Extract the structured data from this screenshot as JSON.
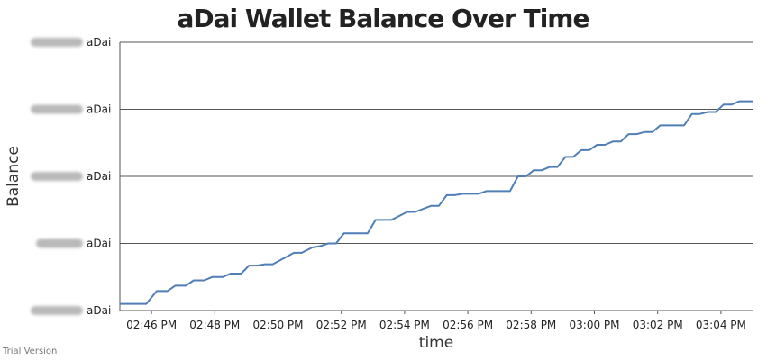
{
  "chart_data": {
    "type": "line",
    "title": "aDai Wallet Balance Over Time",
    "xlabel": "time",
    "ylabel": "Balance",
    "x_ticks": [
      "02:46 PM",
      "02:48 PM",
      "02:50 PM",
      "02:52 PM",
      "02:54 PM",
      "02:56 PM",
      "02:58 PM",
      "03:00 PM",
      "03:02 PM",
      "03:04 PM"
    ],
    "y_tick_unit": "aDai",
    "y_tick_values_obscured": true,
    "x_range": [
      "02:45 PM",
      "03:05 PM"
    ],
    "y_range_relative": [
      0,
      4
    ],
    "grid": "horizontal",
    "series": [
      {
        "color": "#4f7fb6",
        "points": [
          [
            "02:45 PM",
            0.1
          ],
          [
            "02:45:50 PM",
            0.1
          ],
          [
            "02:46:10 PM",
            0.29
          ],
          [
            "02:46:30 PM",
            0.29
          ],
          [
            "02:46:45 PM",
            0.37
          ],
          [
            "02:47:05 PM",
            0.37
          ],
          [
            "02:47:20 PM",
            0.45
          ],
          [
            "02:47:40 PM",
            0.45
          ],
          [
            "02:47:55 PM",
            0.5
          ],
          [
            "02:48:15 PM",
            0.5
          ],
          [
            "02:48:30 PM",
            0.55
          ],
          [
            "02:48:50 PM",
            0.55
          ],
          [
            "02:49:05 PM",
            0.67
          ],
          [
            "02:49:20 PM",
            0.67
          ],
          [
            "02:49:35 PM",
            0.69
          ],
          [
            "02:49:50 PM",
            0.69
          ],
          [
            "02:50:30 PM",
            0.86
          ],
          [
            "02:50:45 PM",
            0.86
          ],
          [
            "02:51:05 PM",
            0.94
          ],
          [
            "02:51:20 PM",
            0.96
          ],
          [
            "02:51:35 PM",
            1.0
          ],
          [
            "02:51:50 PM",
            1.0
          ],
          [
            "02:52:05 PM",
            1.15
          ],
          [
            "02:52:50 PM",
            1.15
          ],
          [
            "02:53:05 PM",
            1.35
          ],
          [
            "02:53:35 PM",
            1.35
          ],
          [
            "02:54:05 PM",
            1.47
          ],
          [
            "02:54:20 PM",
            1.47
          ],
          [
            "02:54:50 PM",
            1.56
          ],
          [
            "02:55:05 PM",
            1.56
          ],
          [
            "02:55:20 PM",
            1.72
          ],
          [
            "02:55:35 PM",
            1.72
          ],
          [
            "02:55:50 PM",
            1.74
          ],
          [
            "02:56:20 PM",
            1.74
          ],
          [
            "02:56:35 PM",
            1.78
          ],
          [
            "02:57:20 PM",
            1.78
          ],
          [
            "02:57:35 PM",
            2.0
          ],
          [
            "02:57:50 PM",
            2.0
          ],
          [
            "02:58:05 PM",
            2.09
          ],
          [
            "02:58:20 PM",
            2.09
          ],
          [
            "02:58:35 PM",
            2.14
          ],
          [
            "02:58:50 PM",
            2.14
          ],
          [
            "02:59:05 PM",
            2.29
          ],
          [
            "02:59:20 PM",
            2.29
          ],
          [
            "02:59:35 PM",
            2.39
          ],
          [
            "02:59:50 PM",
            2.39
          ],
          [
            "03:00:05 PM",
            2.47
          ],
          [
            "03:00:20 PM",
            2.47
          ],
          [
            "03:00:35 PM",
            2.52
          ],
          [
            "03:00:50 PM",
            2.52
          ],
          [
            "03:01:05 PM",
            2.63
          ],
          [
            "03:01:20 PM",
            2.63
          ],
          [
            "03:01:35 PM",
            2.66
          ],
          [
            "03:01:50 PM",
            2.66
          ],
          [
            "03:02:05 PM",
            2.76
          ],
          [
            "03:02:50 PM",
            2.76
          ],
          [
            "03:03:05 PM",
            2.93
          ],
          [
            "03:03:20 PM",
            2.93
          ],
          [
            "03:03:35 PM",
            2.96
          ],
          [
            "03:03:50 PM",
            2.96
          ],
          [
            "03:04:05 PM",
            3.07
          ],
          [
            "03:04:20 PM",
            3.07
          ],
          [
            "03:04:35 PM",
            3.12
          ],
          [
            "03:05 PM",
            3.12
          ]
        ]
      }
    ]
  },
  "colors": {
    "line": "#4f7fb6",
    "grid": "#555555",
    "text": "#222222"
  },
  "footer": {
    "watermark": "Trial Version"
  }
}
